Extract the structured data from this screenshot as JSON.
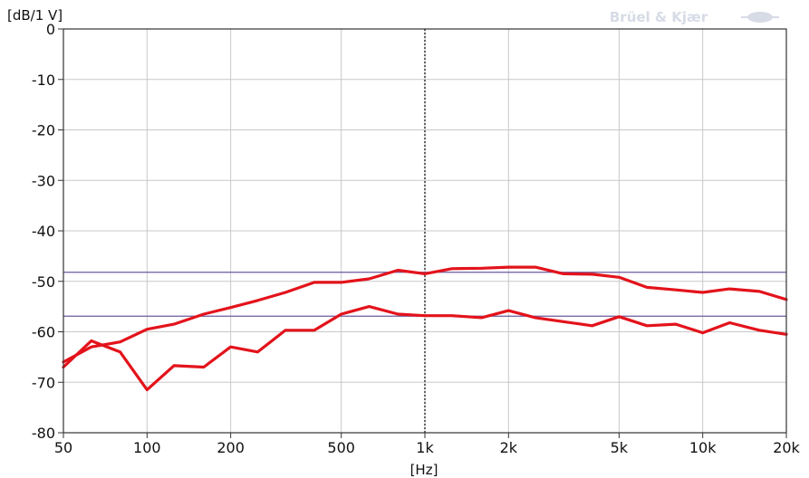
{
  "brand": {
    "text": "Brüel & Kjær"
  },
  "chart_data": {
    "type": "line",
    "title": "",
    "xlabel": "[Hz]",
    "ylabel": "[dB/1 V]",
    "x_scale": "log",
    "xlim": [
      50,
      20000
    ],
    "ylim": [
      -80,
      0
    ],
    "grid": true,
    "x_ticks": [
      {
        "value": 50,
        "label": "50"
      },
      {
        "value": 100,
        "label": "100"
      },
      {
        "value": 200,
        "label": "200"
      },
      {
        "value": 500,
        "label": "500"
      },
      {
        "value": 1000,
        "label": "1k"
      },
      {
        "value": 2000,
        "label": "2k"
      },
      {
        "value": 5000,
        "label": "5k"
      },
      {
        "value": 10000,
        "label": "10k"
      },
      {
        "value": 20000,
        "label": "20k"
      }
    ],
    "y_ticks": [
      {
        "value": 0,
        "label": "0"
      },
      {
        "value": -10,
        "label": "-10"
      },
      {
        "value": -20,
        "label": "-20"
      },
      {
        "value": -30,
        "label": "-30"
      },
      {
        "value": -40,
        "label": "-40"
      },
      {
        "value": -50,
        "label": "-50"
      },
      {
        "value": -60,
        "label": "-60"
      },
      {
        "value": -70,
        "label": "-70"
      },
      {
        "value": -80,
        "label": "-80"
      }
    ],
    "series": [
      {
        "color": "#e3131b",
        "points": [
          [
            50,
            -66
          ],
          [
            63,
            -63
          ],
          [
            80,
            -62
          ],
          [
            100,
            -59.5
          ],
          [
            125,
            -58.5
          ],
          [
            160,
            -56.5
          ],
          [
            200,
            -55.2
          ],
          [
            250,
            -53.8
          ],
          [
            315,
            -52.2
          ],
          [
            400,
            -50.2
          ],
          [
            500,
            -50.2
          ],
          [
            630,
            -49.5
          ],
          [
            800,
            -47.8
          ],
          [
            1000,
            -48.5
          ],
          [
            1250,
            -47.5
          ],
          [
            1600,
            -47.4
          ],
          [
            2000,
            -47.2
          ],
          [
            2500,
            -47.2
          ],
          [
            3150,
            -48.5
          ],
          [
            4000,
            -48.6
          ],
          [
            5000,
            -49.2
          ],
          [
            6300,
            -51.2
          ],
          [
            8000,
            -51.7
          ],
          [
            10000,
            -52.2
          ],
          [
            12500,
            -51.5
          ],
          [
            16000,
            -52
          ],
          [
            20000,
            -53.6
          ]
        ]
      },
      {
        "color": "#e3131b",
        "points": [
          [
            50,
            -67
          ],
          [
            63,
            -61.8
          ],
          [
            80,
            -64
          ],
          [
            100,
            -71.5
          ],
          [
            125,
            -66.7
          ],
          [
            160,
            -67
          ],
          [
            200,
            -63
          ],
          [
            250,
            -64
          ],
          [
            315,
            -59.7
          ],
          [
            400,
            -59.7
          ],
          [
            500,
            -56.5
          ],
          [
            630,
            -55
          ],
          [
            800,
            -56.5
          ],
          [
            1000,
            -56.8
          ],
          [
            1250,
            -56.8
          ],
          [
            1600,
            -57.2
          ],
          [
            2000,
            -55.8
          ],
          [
            2500,
            -57.2
          ],
          [
            3150,
            -58
          ],
          [
            4000,
            -58.8
          ],
          [
            5000,
            -57
          ],
          [
            6300,
            -58.8
          ],
          [
            8000,
            -58.5
          ],
          [
            10000,
            -60.2
          ],
          [
            12500,
            -58.2
          ],
          [
            16000,
            -59.7
          ],
          [
            20000,
            -60.5
          ]
        ]
      }
    ],
    "cursors": {
      "vertical_x": 1000,
      "horizontal_y": [
        -48.2,
        -56.9
      ],
      "color": "#6b5a9e"
    }
  }
}
